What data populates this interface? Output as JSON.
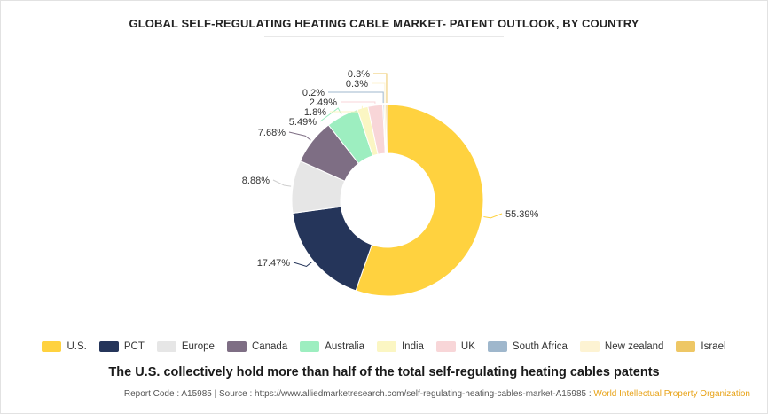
{
  "title": "GLOBAL SELF-REGULATING HEATING CABLE MARKET- PATENT OUTLOOK, BY COUNTRY",
  "subtitle": "The U.S. collectively hold more than half of the total self-regulating heating cables patents",
  "footer": {
    "report_code": "Report Code : A15985",
    "separator": "|",
    "source": "Source : https://www.alliedmarketresearch.com/self-regulating-heating-cables-market-A15985 :",
    "source_org": "World Intellectual Property Organization"
  },
  "chart_data": {
    "type": "pie",
    "donut": true,
    "legend_position": "bottom",
    "slices": [
      {
        "name": "U.S.",
        "value": 55.39,
        "label": "55.39%",
        "color": "#ffd23f"
      },
      {
        "name": "PCT",
        "value": 17.47,
        "label": "17.47%",
        "color": "#25355a"
      },
      {
        "name": "Europe",
        "value": 8.88,
        "label": "8.88%",
        "color": "#e6e6e6"
      },
      {
        "name": "Canada",
        "value": 7.68,
        "label": "7.68%",
        "color": "#7e6e84"
      },
      {
        "name": "Australia",
        "value": 5.49,
        "label": "5.49%",
        "color": "#9deec0"
      },
      {
        "name": "India",
        "value": 1.8,
        "label": "1.8%",
        "color": "#fbf6c3"
      },
      {
        "name": "UK",
        "value": 2.49,
        "label": "2.49%",
        "color": "#f8d6d8"
      },
      {
        "name": "South Africa",
        "value": 0.2,
        "label": "0.2%",
        "color": "#9fb7cc"
      },
      {
        "name": "New zealand",
        "value": 0.3,
        "label": "0.3%",
        "color": "#fdf3d3"
      },
      {
        "name": "Israel",
        "value": 0.3,
        "label": "0.3%",
        "color": "#eec765"
      }
    ]
  }
}
